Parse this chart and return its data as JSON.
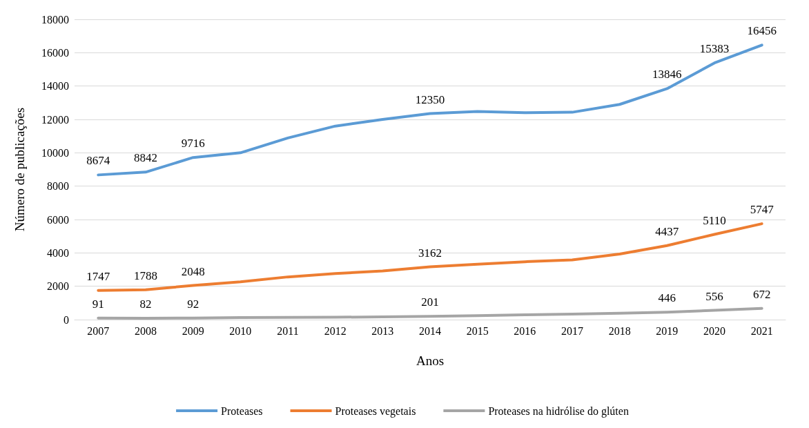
{
  "chart_data": {
    "type": "line",
    "xlabel": "Anos",
    "ylabel": "Número de publicações",
    "categories": [
      "2007",
      "2008",
      "2009",
      "2010",
      "2011",
      "2012",
      "2013",
      "2014",
      "2015",
      "2016",
      "2017",
      "2018",
      "2019",
      "2020",
      "2021"
    ],
    "series": [
      {
        "name": "Proteases",
        "color": "#5b9bd5",
        "values": [
          8674,
          8842,
          9716,
          10000,
          10890,
          11600,
          12000,
          12350,
          12480,
          12400,
          12430,
          12900,
          13846,
          15383,
          16456
        ],
        "value_labels": [
          "8674",
          "8842",
          "9716",
          null,
          null,
          null,
          null,
          "12350",
          null,
          null,
          null,
          null,
          "13846",
          "15383",
          "16456"
        ]
      },
      {
        "name": "Proteases vegetais",
        "color": "#ed7d31",
        "values": [
          1747,
          1788,
          2048,
          2270,
          2560,
          2760,
          2920,
          3162,
          3320,
          3470,
          3580,
          3930,
          4437,
          5110,
          5747
        ],
        "value_labels": [
          "1747",
          "1788",
          "2048",
          null,
          null,
          null,
          null,
          "3162",
          null,
          null,
          null,
          null,
          "4437",
          "5110",
          "5747"
        ]
      },
      {
        "name": "Proteases na hidrólise do glúten",
        "color": "#a5a5a5",
        "values": [
          91,
          82,
          92,
          120,
          130,
          140,
          170,
          201,
          240,
          290,
          330,
          380,
          446,
          556,
          672
        ],
        "value_labels": [
          "91",
          "82",
          "92",
          null,
          null,
          null,
          null,
          "201",
          null,
          null,
          null,
          null,
          "446",
          "556",
          "672"
        ]
      }
    ],
    "ylim": [
      0,
      18000
    ],
    "yticks": [
      0,
      2000,
      4000,
      6000,
      8000,
      10000,
      12000,
      14000,
      16000,
      18000
    ],
    "grid": "y",
    "legend": "bottom",
    "marker": "none",
    "line_style": "solid"
  }
}
